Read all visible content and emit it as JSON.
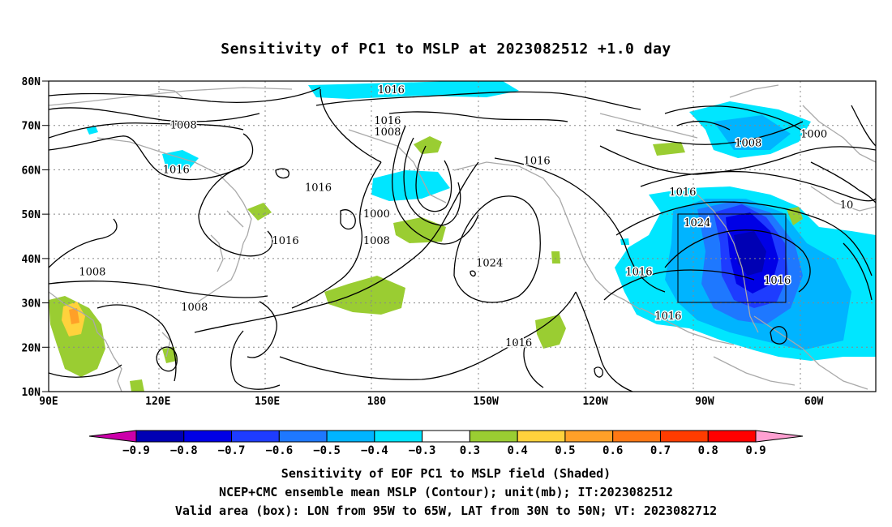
{
  "title": "Sensitivity of PC1 to MSLP at 2023082512 +1.0 day",
  "lat_labels": [
    "80N",
    "70N",
    "60N",
    "50N",
    "40N",
    "30N",
    "20N",
    "10N"
  ],
  "lon_labels": [
    "90E",
    "120E",
    "150E",
    "180",
    "150W",
    "120W",
    "90W",
    "60W"
  ],
  "contour_labels": [
    {
      "text": "1016",
      "lon": 184,
      "lat": 78
    },
    {
      "text": "1008",
      "lon": 127,
      "lat": 70
    },
    {
      "text": "1016",
      "lon": 183,
      "lat": 71
    },
    {
      "text": "1008",
      "lon": 183,
      "lat": 68.5
    },
    {
      "text": "1016",
      "lon": 125,
      "lat": 60
    },
    {
      "text": "1016",
      "lon": 164,
      "lat": 56
    },
    {
      "text": "1016",
      "lon": 224,
      "lat": 62
    },
    {
      "text": "1000",
      "lon": 180,
      "lat": 50
    },
    {
      "text": "1008",
      "lon": 180,
      "lat": 44
    },
    {
      "text": "1016",
      "lon": 155,
      "lat": 44
    },
    {
      "text": "1008",
      "lon": 102,
      "lat": 37
    },
    {
      "text": "1008",
      "lon": 130,
      "lat": 29
    },
    {
      "text": "1024",
      "lon": 211,
      "lat": 39
    },
    {
      "text": "1016",
      "lon": 252,
      "lat": 37
    },
    {
      "text": "1016",
      "lon": 260,
      "lat": 27
    },
    {
      "text": "1016",
      "lon": 219,
      "lat": 21
    },
    {
      "text": "1024",
      "lon": 268,
      "lat": 48
    },
    {
      "text": "1016",
      "lon": 264,
      "lat": 55
    },
    {
      "text": "1008",
      "lon": 282,
      "lat": 66
    },
    {
      "text": "1000",
      "lon": 300,
      "lat": 68
    },
    {
      "text": "1016",
      "lon": 290,
      "lat": 35
    },
    {
      "text": "10",
      "lon": 309,
      "lat": 52
    }
  ],
  "colorbar": {
    "colors": [
      "#cc00aa",
      "#0000b4",
      "#0000e6",
      "#1e3cff",
      "#1e78ff",
      "#00b4ff",
      "#00e6ff",
      "#ffffff",
      "#9acd32",
      "#ffd23c",
      "#ffa028",
      "#ff7814",
      "#ff3c00",
      "#ff0000",
      "#ffa0d2"
    ],
    "labels": [
      "−0.9",
      "−0.8",
      "−0.7",
      "−0.6",
      "−0.5",
      "−0.4",
      "−0.3",
      "0.3",
      "0.4",
      "0.5",
      "0.6",
      "0.7",
      "0.8",
      "0.9"
    ]
  },
  "caption": {
    "line1": "Sensitivity of EOF PC1 to MSLP field (Shaded)",
    "line2": "NCEP+CMC ensemble mean MSLP (Contour); unit(mb); IT:2023082512",
    "line3": "Valid area (box): LON from 95W to 65W, LAT from 30N to 50N; VT: 2023082712"
  }
}
